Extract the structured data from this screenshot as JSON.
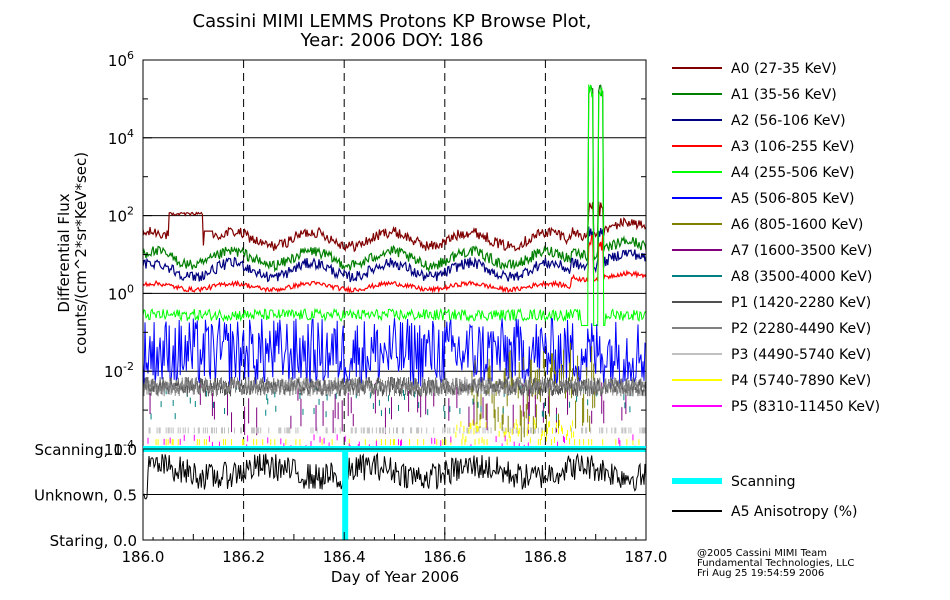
{
  "chart_data": [
    {
      "type": "line",
      "title_line1": "Cassini MIMI LEMMS Protons KP Browse Plot,",
      "title_line2": "Year: 2006 DOY: 186",
      "ylabel_line1": "Differential Flux",
      "ylabel_line2": "counts/(cm^2*sr*KeV*sec)",
      "yscale": "log",
      "ylim": [
        0.0001,
        1000000
      ],
      "xlim": [
        186.0,
        187.0
      ],
      "y_tick_labels": [
        {
          "base": "10",
          "exp": "6",
          "value": 1000000
        },
        {
          "base": "10",
          "exp": "4",
          "value": 10000
        },
        {
          "base": "10",
          "exp": "2",
          "value": 100
        },
        {
          "base": "10",
          "exp": "0",
          "value": 1
        },
        {
          "base": "10",
          "exp": "-2",
          "value": 0.01
        },
        {
          "base": "10",
          "exp": "-4",
          "value": 0.0001
        }
      ],
      "grid": true,
      "legend_position": "right",
      "series": [
        {
          "name": "A0 (27-35 KeV)",
          "color": "#800000",
          "baseline": 25,
          "spike": 150
        },
        {
          "name": "A1 (35-56 KeV)",
          "color": "#007f00",
          "baseline": 8,
          "spike": 150000
        },
        {
          "name": "A2 (56-106 KeV)",
          "color": "#000080",
          "baseline": 4,
          "spike": 40
        },
        {
          "name": "A3 (106-255 KeV)",
          "color": "#ff0000",
          "baseline": 1.5,
          "spike": 20
        },
        {
          "name": "A4 (255-506 KeV)",
          "color": "#00ff00",
          "baseline": 0.28,
          "spike": 150000
        },
        {
          "name": "A5 (506-805 KeV)",
          "color": "#0000ff",
          "baseline": 0.03
        },
        {
          "name": "A6 (805-1600 KeV)",
          "color": "#808000",
          "baseline": 0.004
        },
        {
          "name": "A7 (1600-3500 KeV)",
          "color": "#800080",
          "baseline": 0.003
        },
        {
          "name": "A8 (3500-4000 KeV)",
          "color": "#008080",
          "baseline": 0.004
        },
        {
          "name": "P1 (1420-2280 KeV)",
          "color": "#505050",
          "baseline": 0.004
        },
        {
          "name": "P2 (2280-4490 KeV)",
          "color": "#808080",
          "baseline": 0.004
        },
        {
          "name": "P3 (4490-5740 KeV)",
          "color": "#c0c0c0",
          "baseline": 0.0003
        },
        {
          "name": "P4 (5740-7890 KeV)",
          "color": "#ffff00",
          "baseline": 0.00015
        },
        {
          "name": "P5 (8310-11450 KeV)",
          "color": "#ff00ff",
          "baseline": 0.0002
        }
      ]
    },
    {
      "type": "line",
      "xlabel": "Day of Year 2006",
      "x_tick_labels": [
        "186.0",
        "186.2",
        "186.4",
        "186.6",
        "186.8",
        "187.0"
      ],
      "x_ticks": [
        186.0,
        186.2,
        186.4,
        186.6,
        186.8,
        187.0
      ],
      "xlim": [
        186.0,
        187.0
      ],
      "ylim": [
        0.0,
        1.0
      ],
      "y_tick_labels": [
        {
          "label": "Scanning, 1.0",
          "value": 1.0
        },
        {
          "label": "Unknown, 0.5",
          "value": 0.5
        },
        {
          "label": "Staring, 0.0",
          "value": 0.0
        }
      ],
      "grid": true,
      "legend_position": "right",
      "series": [
        {
          "name": "Scanning",
          "color": "#00ffff",
          "values_note_level": 1.0,
          "staring_interval": [
            186.396,
            186.404
          ]
        },
        {
          "name": "A5 Anisotropy (%)",
          "color": "#000000",
          "baseline": 0.75
        }
      ]
    }
  ],
  "footer": {
    "line1": "@2005 Cassini MIMI Team",
    "line2": "Fundamental Technologies, LLC",
    "line3": "Fri Aug 25 19:54:59 2006"
  }
}
